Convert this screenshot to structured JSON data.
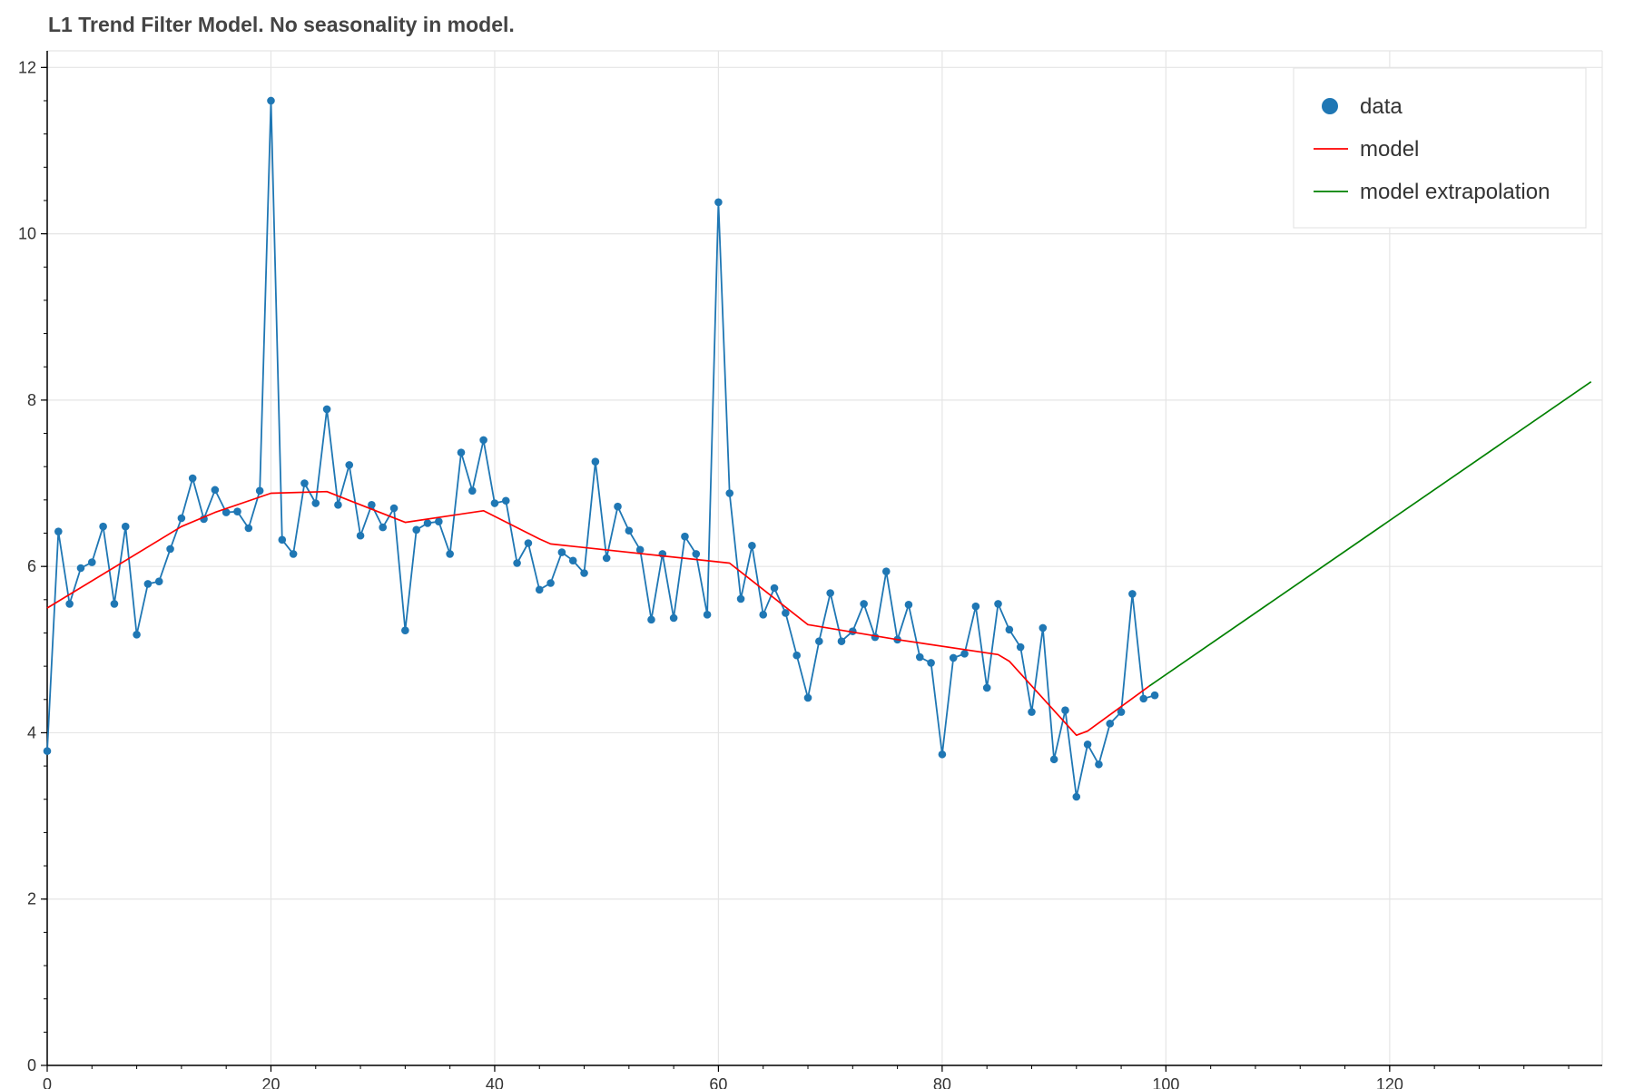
{
  "chart_data": {
    "type": "line",
    "title": "L1 Trend Filter Model. No seasonality in model.",
    "xlabel": "",
    "ylabel": "",
    "xlim": [
      0,
      139
    ],
    "ylim": [
      0,
      12.2
    ],
    "x_ticks": [
      0,
      20,
      40,
      60,
      80,
      100,
      120
    ],
    "y_ticks": [
      0,
      2,
      4,
      6,
      8,
      10,
      12
    ],
    "grid": true,
    "legend_position": "top-right",
    "legend": [
      "data",
      "model",
      "model extrapolation"
    ],
    "colors": {
      "data": "#1f77b4",
      "model": "#ff0000",
      "model_extrapolation": "#008000"
    },
    "series": [
      {
        "name": "data",
        "style": "line+points",
        "x": [
          0,
          1,
          2,
          3,
          4,
          5,
          6,
          7,
          8,
          9,
          10,
          11,
          12,
          13,
          14,
          15,
          16,
          17,
          18,
          19,
          20,
          21,
          22,
          23,
          24,
          25,
          26,
          27,
          28,
          29,
          30,
          31,
          32,
          33,
          34,
          35,
          36,
          37,
          38,
          39,
          40,
          41,
          42,
          43,
          44,
          45,
          46,
          47,
          48,
          49,
          50,
          51,
          52,
          53,
          54,
          55,
          56,
          57,
          58,
          59,
          60,
          61,
          62,
          63,
          64,
          65,
          66,
          67,
          68,
          69,
          70,
          71,
          72,
          73,
          74,
          75,
          76,
          77,
          78,
          79,
          80,
          81,
          82,
          83,
          84,
          85,
          86,
          87,
          88,
          89,
          90,
          91,
          92,
          93,
          94,
          95,
          96,
          97,
          98,
          99
        ],
        "y": [
          3.78,
          6.42,
          5.55,
          5.98,
          6.05,
          6.48,
          5.55,
          6.48,
          5.18,
          5.79,
          5.82,
          6.21,
          6.58,
          7.06,
          6.57,
          6.92,
          6.65,
          6.66,
          6.46,
          6.91,
          11.6,
          6.32,
          6.15,
          7.0,
          6.76,
          7.89,
          6.74,
          7.22,
          6.37,
          6.74,
          6.47,
          6.7,
          5.23,
          6.44,
          6.52,
          6.54,
          6.15,
          7.37,
          6.91,
          7.52,
          6.76,
          6.79,
          6.04,
          6.28,
          5.72,
          5.8,
          6.17,
          6.07,
          5.92,
          7.26,
          6.1,
          6.72,
          6.43,
          6.2,
          5.36,
          6.15,
          5.38,
          6.36,
          6.15,
          5.42,
          10.38,
          6.88,
          5.61,
          6.25,
          5.42,
          5.74,
          5.44,
          4.93,
          4.42,
          5.1,
          5.68,
          5.1,
          5.22,
          5.55,
          5.15,
          5.94,
          5.12,
          5.54,
          4.91,
          4.84,
          3.74,
          4.9,
          4.95,
          5.52,
          4.54,
          5.55,
          5.24,
          5.03,
          4.25,
          5.26,
          3.68,
          4.27,
          3.23,
          3.86,
          3.62,
          4.11,
          4.25,
          5.67,
          4.41,
          4.45
        ]
      },
      {
        "name": "model",
        "style": "line",
        "x": [
          0,
          12,
          15,
          20,
          25,
          32,
          39,
          44,
          45,
          61,
          68,
          76,
          85,
          86,
          92,
          93,
          98.5
        ],
        "y": [
          5.5,
          6.48,
          6.65,
          6.88,
          6.9,
          6.53,
          6.67,
          6.33,
          6.27,
          6.04,
          5.3,
          5.12,
          4.94,
          4.86,
          3.97,
          4.02,
          4.56
        ]
      },
      {
        "name": "model extrapolation",
        "style": "line",
        "x": [
          98.5,
          138
        ],
        "y": [
          4.56,
          8.22
        ]
      }
    ]
  }
}
